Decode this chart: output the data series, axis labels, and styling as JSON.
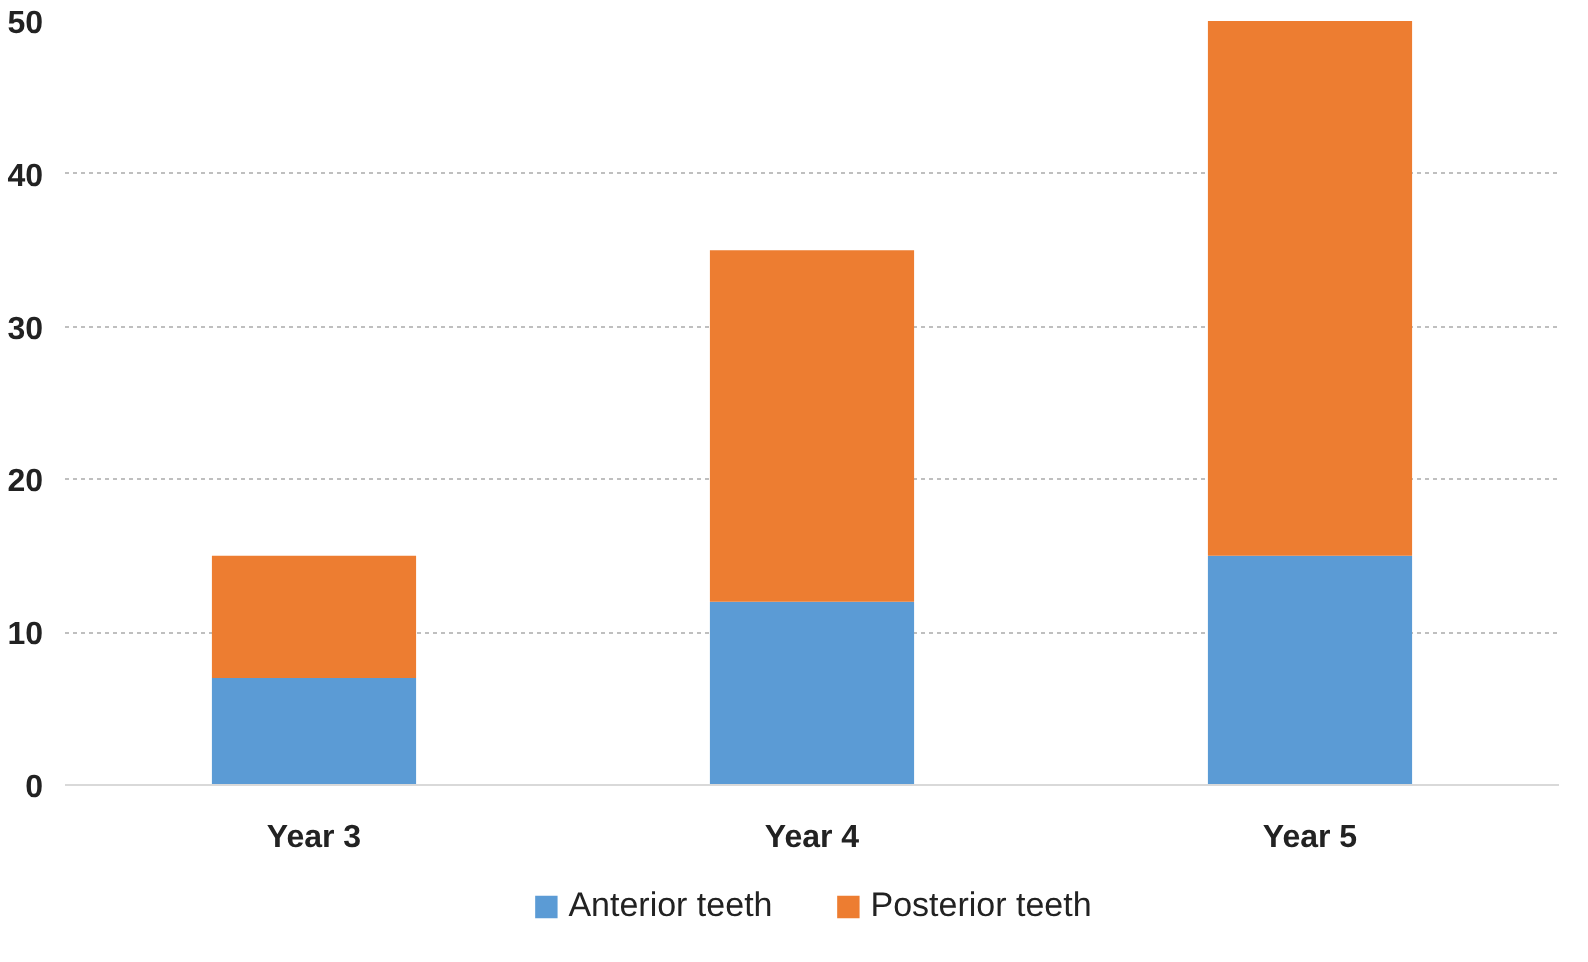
{
  "chart_data": {
    "type": "bar",
    "stacked": true,
    "categories": [
      "Year 3",
      "Year 4",
      "Year 5"
    ],
    "series": [
      {
        "name": "Anterior teeth",
        "color": "#5b9bd5",
        "values": [
          7,
          12,
          15
        ]
      },
      {
        "name": "Posterior teeth",
        "color": "#ed7d31",
        "values": [
          8,
          23,
          35
        ]
      }
    ],
    "ylim": [
      0,
      50
    ],
    "yticks": [
      0,
      10,
      20,
      30,
      40,
      50
    ],
    "grid": "y",
    "legend": "bottom"
  }
}
